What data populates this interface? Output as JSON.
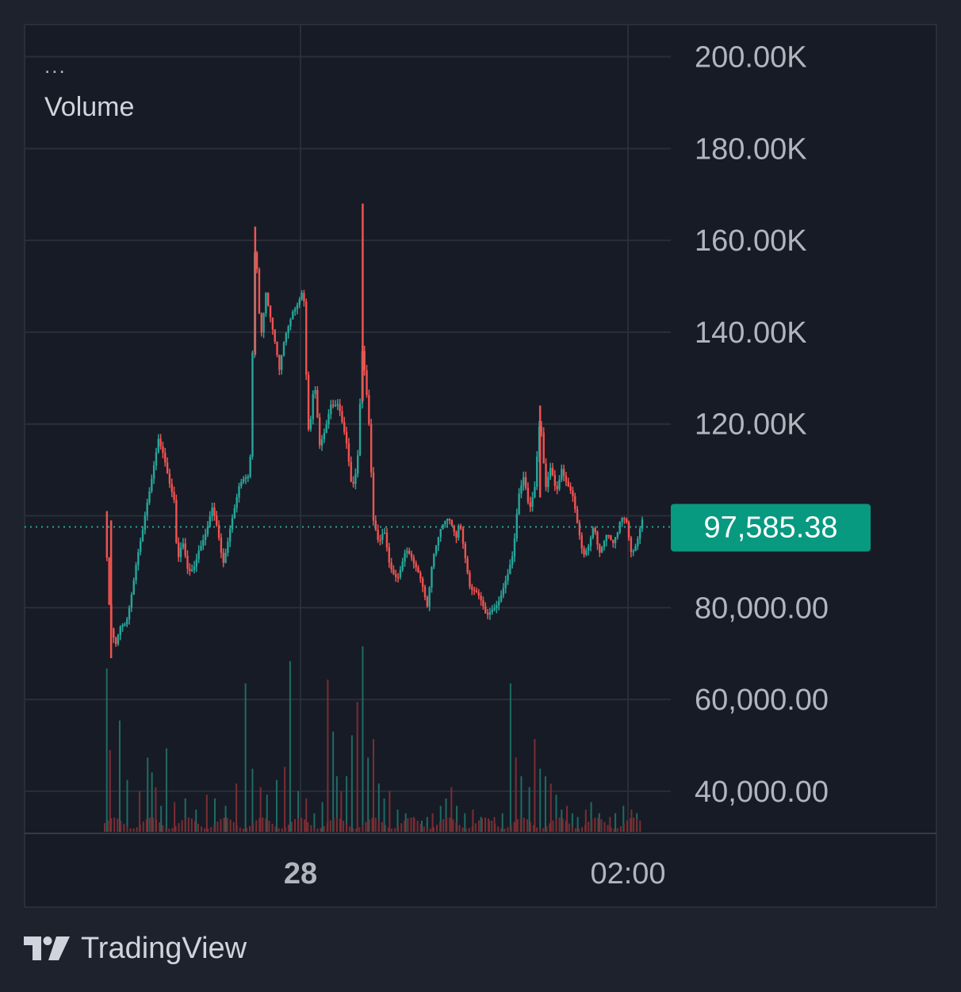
{
  "legend": {
    "dots": "...",
    "indicator": "Volume"
  },
  "footer": {
    "brand": "TradingView"
  },
  "colors": {
    "background": "#1e222d",
    "pane": "#171b26",
    "grid": "#2a2e39",
    "up": "#26a69a",
    "down": "#ef5350",
    "price_label_bg": "#089981",
    "text": "#b2b5be"
  },
  "chart_data": {
    "type": "candlestick",
    "title": "",
    "price_axis": {
      "min": 31000,
      "max": 207000,
      "ticks": [
        {
          "value": 200000,
          "label": "200.00K"
        },
        {
          "value": 180000,
          "label": "180.00K"
        },
        {
          "value": 160000,
          "label": "160.00K"
        },
        {
          "value": 140000,
          "label": "140.00K"
        },
        {
          "value": 120000,
          "label": "120.00K"
        },
        {
          "value": 80000,
          "label": "80,000.00"
        },
        {
          "value": 60000,
          "label": "60,000.00"
        },
        {
          "value": 40000,
          "label": "40,000.00"
        }
      ]
    },
    "time_axis": {
      "ticks": [
        {
          "label": "28",
          "bold": true
        },
        {
          "label": "02:00",
          "bold": false
        }
      ]
    },
    "last_price": {
      "value": 97585.38,
      "label": "97,585.38"
    },
    "price_path": [
      [
        0,
        101000
      ],
      [
        0.01,
        75000
      ],
      [
        0.02,
        70000
      ],
      [
        0.03,
        76000
      ],
      [
        0.04,
        78000
      ],
      [
        0.06,
        91000
      ],
      [
        0.07,
        95000
      ],
      [
        0.085,
        105000
      ],
      [
        0.1,
        118000
      ],
      [
        0.11,
        115000
      ],
      [
        0.12,
        108000
      ],
      [
        0.13,
        102000
      ],
      [
        0.135,
        88000
      ],
      [
        0.145,
        93000
      ],
      [
        0.155,
        88000
      ],
      [
        0.165,
        90000
      ],
      [
        0.175,
        94000
      ],
      [
        0.19,
        96000
      ],
      [
        0.2,
        100000
      ],
      [
        0.21,
        96000
      ],
      [
        0.22,
        90000
      ],
      [
        0.235,
        100000
      ],
      [
        0.25,
        106000
      ],
      [
        0.27,
        107000
      ],
      [
        0.275,
        135000
      ],
      [
        0.28,
        162000
      ],
      [
        0.29,
        140000
      ],
      [
        0.3,
        150000
      ],
      [
        0.31,
        142000
      ],
      [
        0.325,
        130000
      ],
      [
        0.335,
        138000
      ],
      [
        0.35,
        146000
      ],
      [
        0.36,
        148000
      ],
      [
        0.37,
        150000
      ],
      [
        0.375,
        130000
      ],
      [
        0.38,
        115000
      ],
      [
        0.39,
        128000
      ],
      [
        0.4,
        115000
      ],
      [
        0.41,
        120000
      ],
      [
        0.42,
        126000
      ],
      [
        0.435,
        124000
      ],
      [
        0.44,
        120000
      ],
      [
        0.45,
        114000
      ],
      [
        0.46,
        105000
      ],
      [
        0.47,
        112000
      ],
      [
        0.48,
        140000
      ],
      [
        0.485,
        130000
      ],
      [
        0.49,
        125000
      ],
      [
        0.5,
        98000
      ],
      [
        0.51,
        92000
      ],
      [
        0.52,
        96000
      ],
      [
        0.53,
        90000
      ],
      [
        0.545,
        88000
      ],
      [
        0.56,
        92000
      ],
      [
        0.575,
        88000
      ],
      [
        0.59,
        86000
      ],
      [
        0.6,
        82000
      ],
      [
        0.61,
        92000
      ],
      [
        0.625,
        96000
      ],
      [
        0.64,
        98000
      ],
      [
        0.655,
        96000
      ],
      [
        0.66,
        101000
      ],
      [
        0.67,
        93000
      ],
      [
        0.68,
        84000
      ],
      [
        0.69,
        82000
      ],
      [
        0.7,
        80000
      ],
      [
        0.71,
        78000
      ],
      [
        0.72,
        81000
      ],
      [
        0.735,
        83000
      ],
      [
        0.75,
        86000
      ],
      [
        0.76,
        90000
      ],
      [
        0.77,
        104000
      ],
      [
        0.78,
        110000
      ],
      [
        0.79,
        103000
      ],
      [
        0.8,
        107000
      ],
      [
        0.81,
        121000
      ],
      [
        0.82,
        104000
      ],
      [
        0.83,
        110000
      ],
      [
        0.84,
        106000
      ],
      [
        0.85,
        112000
      ],
      [
        0.86,
        108000
      ],
      [
        0.87,
        104000
      ],
      [
        0.88,
        96000
      ],
      [
        0.89,
        90000
      ],
      [
        0.9,
        94000
      ],
      [
        0.91,
        100000
      ],
      [
        0.92,
        93000
      ],
      [
        0.935,
        95000
      ],
      [
        0.945,
        92000
      ],
      [
        0.955,
        96000
      ],
      [
        0.96,
        100000
      ],
      [
        0.97,
        101000
      ],
      [
        0.98,
        93000
      ],
      [
        0.99,
        94000
      ],
      [
        1.0,
        97585
      ]
    ],
    "spikes": [
      {
        "at": 0.012,
        "high": 99000,
        "low": 69000
      },
      {
        "at": 0.28,
        "high": 163000,
        "low": 135000
      },
      {
        "at": 0.48,
        "high": 168000,
        "low": 125000
      },
      {
        "at": 0.81,
        "high": 124000,
        "low": 104000
      }
    ],
    "volume": {
      "max_value": 100,
      "bars": [
        [
          0.004,
          88
        ],
        [
          0.01,
          44
        ],
        [
          0.028,
          60
        ],
        [
          0.042,
          28
        ],
        [
          0.065,
          22
        ],
        [
          0.08,
          40
        ],
        [
          0.088,
          32
        ],
        [
          0.095,
          24
        ],
        [
          0.105,
          14
        ],
        [
          0.115,
          45
        ],
        [
          0.13,
          16
        ],
        [
          0.15,
          18
        ],
        [
          0.17,
          12
        ],
        [
          0.19,
          20
        ],
        [
          0.205,
          18
        ],
        [
          0.225,
          14
        ],
        [
          0.245,
          26
        ],
        [
          0.262,
          80
        ],
        [
          0.275,
          34
        ],
        [
          0.29,
          24
        ],
        [
          0.302,
          20
        ],
        [
          0.32,
          28
        ],
        [
          0.335,
          35
        ],
        [
          0.345,
          92
        ],
        [
          0.36,
          22
        ],
        [
          0.375,
          18
        ],
        [
          0.39,
          10
        ],
        [
          0.405,
          16
        ],
        [
          0.415,
          82
        ],
        [
          0.425,
          54
        ],
        [
          0.432,
          30
        ],
        [
          0.44,
          22
        ],
        [
          0.45,
          30
        ],
        [
          0.46,
          52
        ],
        [
          0.47,
          70
        ],
        [
          0.48,
          100
        ],
        [
          0.49,
          40
        ],
        [
          0.5,
          50
        ],
        [
          0.51,
          26
        ],
        [
          0.52,
          18
        ],
        [
          0.53,
          22
        ],
        [
          0.545,
          12
        ],
        [
          0.56,
          10
        ],
        [
          0.575,
          8
        ],
        [
          0.59,
          6
        ],
        [
          0.6,
          8
        ],
        [
          0.61,
          10
        ],
        [
          0.625,
          14
        ],
        [
          0.635,
          18
        ],
        [
          0.645,
          24
        ],
        [
          0.655,
          14
        ],
        [
          0.67,
          10
        ],
        [
          0.685,
          12
        ],
        [
          0.7,
          8
        ],
        [
          0.715,
          6
        ],
        [
          0.725,
          8
        ],
        [
          0.74,
          10
        ],
        [
          0.755,
          80
        ],
        [
          0.765,
          40
        ],
        [
          0.775,
          30
        ],
        [
          0.79,
          24
        ],
        [
          0.8,
          50
        ],
        [
          0.81,
          34
        ],
        [
          0.82,
          30
        ],
        [
          0.83,
          26
        ],
        [
          0.84,
          20
        ],
        [
          0.85,
          12
        ],
        [
          0.86,
          14
        ],
        [
          0.87,
          10
        ],
        [
          0.88,
          8
        ],
        [
          0.895,
          12
        ],
        [
          0.905,
          16
        ],
        [
          0.92,
          10
        ],
        [
          0.94,
          8
        ],
        [
          0.95,
          10
        ],
        [
          0.965,
          14
        ],
        [
          0.98,
          12
        ],
        [
          0.99,
          10
        ]
      ]
    },
    "grid": true
  }
}
